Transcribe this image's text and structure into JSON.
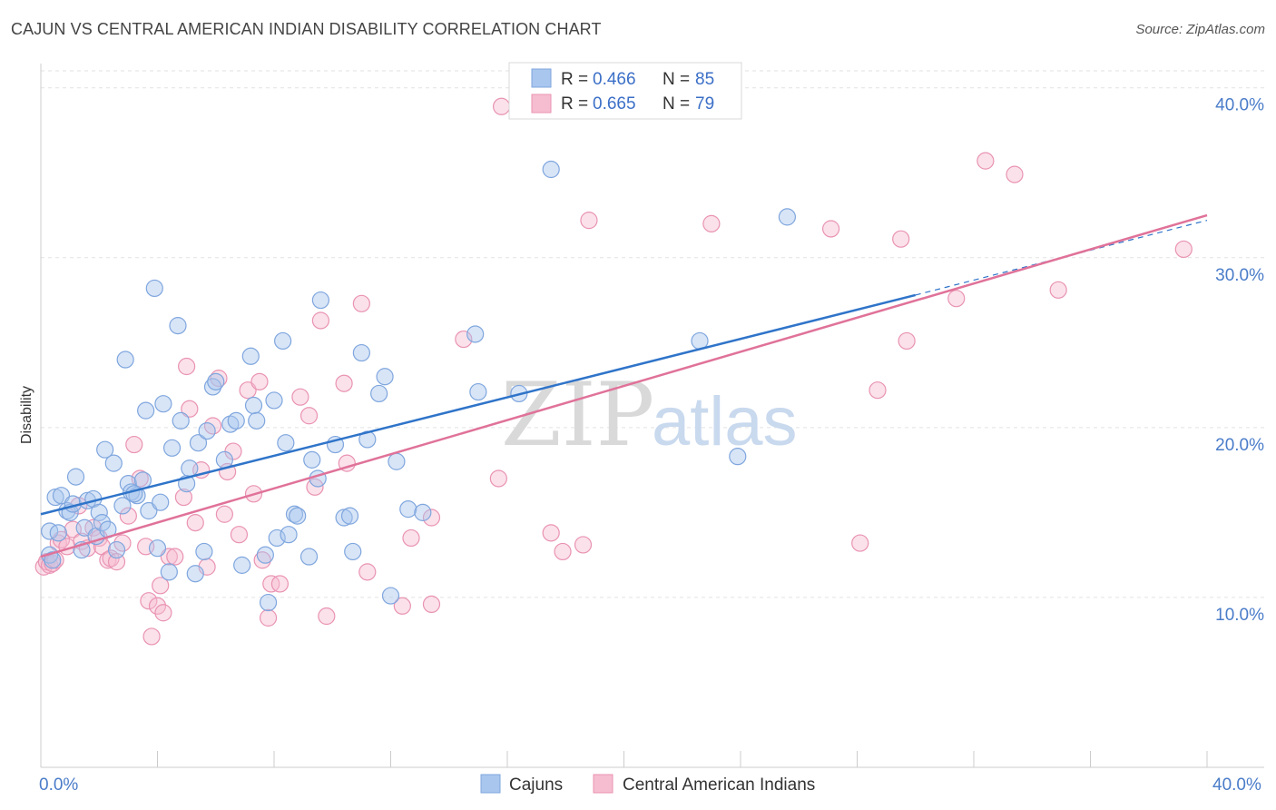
{
  "header": {
    "title": "CAJUN VS CENTRAL AMERICAN INDIAN DISABILITY CORRELATION CHART",
    "source": "Source: ZipAtlas.com"
  },
  "watermark": {
    "zip": "ZIP",
    "atlas": "atlas"
  },
  "colors": {
    "cajuns_fill": "#a9c6ee",
    "cajuns_stroke": "#7fa6de",
    "cajuns_line": "#2f74c9",
    "cai_fill": "#f6bdd0",
    "cai_stroke": "#e993b2",
    "cai_line": "#e07299",
    "grid": "#e2e2e2",
    "tick_text": "#4a7cc9"
  },
  "legend_top": {
    "rows": [
      {
        "r_label": "R = ",
        "r_value": "0.466",
        "n_label": "N = ",
        "n_value": "85"
      },
      {
        "r_label": "R = ",
        "r_value": "0.665",
        "n_label": "N = ",
        "n_value": "79"
      }
    ]
  },
  "legend_bottom": {
    "items": [
      "Cajuns",
      "Central American Indians"
    ]
  },
  "chart_data": {
    "type": "scatter",
    "title": "CAJUN VS CENTRAL AMERICAN INDIAN DISABILITY CORRELATION CHART",
    "xlabel": "",
    "ylabel": "Disability",
    "xlim": [
      0,
      40
    ],
    "ylim": [
      0,
      41
    ],
    "x_ticks": [
      "0.0%",
      "40.0%"
    ],
    "y_ticks": [
      {
        "value": 10,
        "label": "10.0%"
      },
      {
        "value": 20,
        "label": "20.0%"
      },
      {
        "value": 30,
        "label": "30.0%"
      },
      {
        "value": 40,
        "label": "40.0%"
      }
    ],
    "grid": true,
    "legend_position": "top-center",
    "series": [
      {
        "name": "Cajuns",
        "r": 0.466,
        "n": 85,
        "trend": {
          "x0": 0,
          "y0": 14.9,
          "x1": 30,
          "y1": 27.8,
          "dashed_to_x": 40,
          "dashed_to_y": 32.2
        },
        "points": [
          [
            0.3,
            12.5
          ],
          [
            0.4,
            12.2
          ],
          [
            0.3,
            13.9
          ],
          [
            0.5,
            15.9
          ],
          [
            0.6,
            13.8
          ],
          [
            0.7,
            16.0
          ],
          [
            0.9,
            15.1
          ],
          [
            1.0,
            15.0
          ],
          [
            1.1,
            15.5
          ],
          [
            1.2,
            17.1
          ],
          [
            1.4,
            12.8
          ],
          [
            1.5,
            14.1
          ],
          [
            1.6,
            15.7
          ],
          [
            1.8,
            15.8
          ],
          [
            1.9,
            13.6
          ],
          [
            2.0,
            15.0
          ],
          [
            2.1,
            14.4
          ],
          [
            2.2,
            18.7
          ],
          [
            2.3,
            14.0
          ],
          [
            2.5,
            17.9
          ],
          [
            2.6,
            12.8
          ],
          [
            2.8,
            15.4
          ],
          [
            2.9,
            24.0
          ],
          [
            3.0,
            16.7
          ],
          [
            3.1,
            16.2
          ],
          [
            3.3,
            16.0
          ],
          [
            3.5,
            16.9
          ],
          [
            3.6,
            21.0
          ],
          [
            3.7,
            15.1
          ],
          [
            3.9,
            28.2
          ],
          [
            4.0,
            12.9
          ],
          [
            4.1,
            15.6
          ],
          [
            4.2,
            21.4
          ],
          [
            4.4,
            11.5
          ],
          [
            4.5,
            18.8
          ],
          [
            4.7,
            26.0
          ],
          [
            4.8,
            20.4
          ],
          [
            5.0,
            16.7
          ],
          [
            5.1,
            17.6
          ],
          [
            5.3,
            11.4
          ],
          [
            5.4,
            19.1
          ],
          [
            5.6,
            12.7
          ],
          [
            5.7,
            19.8
          ],
          [
            5.9,
            22.4
          ],
          [
            6.0,
            22.7
          ],
          [
            6.3,
            18.1
          ],
          [
            6.5,
            20.2
          ],
          [
            6.7,
            20.4
          ],
          [
            6.9,
            11.9
          ],
          [
            7.2,
            24.2
          ],
          [
            7.3,
            21.3
          ],
          [
            7.4,
            20.4
          ],
          [
            7.7,
            12.5
          ],
          [
            7.8,
            9.7
          ],
          [
            8.0,
            21.6
          ],
          [
            8.1,
            13.5
          ],
          [
            8.3,
            25.1
          ],
          [
            8.4,
            19.1
          ],
          [
            8.5,
            13.7
          ],
          [
            8.7,
            14.9
          ],
          [
            8.8,
            14.8
          ],
          [
            9.2,
            12.4
          ],
          [
            9.3,
            18.1
          ],
          [
            9.5,
            17.0
          ],
          [
            9.6,
            27.5
          ],
          [
            10.1,
            19.0
          ],
          [
            10.4,
            14.7
          ],
          [
            10.6,
            14.8
          ],
          [
            10.7,
            12.7
          ],
          [
            11.0,
            24.4
          ],
          [
            11.2,
            19.3
          ],
          [
            11.6,
            22.0
          ],
          [
            11.8,
            23.0
          ],
          [
            12.0,
            10.1
          ],
          [
            12.2,
            18.0
          ],
          [
            12.6,
            15.2
          ],
          [
            13.1,
            15.0
          ],
          [
            14.9,
            25.5
          ],
          [
            15.0,
            22.1
          ],
          [
            16.4,
            22.0
          ],
          [
            17.5,
            35.2
          ],
          [
            22.6,
            25.1
          ],
          [
            23.9,
            18.3
          ],
          [
            25.6,
            32.4
          ],
          [
            3.2,
            16.1
          ]
        ]
      },
      {
        "name": "Central American Indians",
        "r": 0.665,
        "n": 79,
        "trend": {
          "x0": 0,
          "y0": 12.4,
          "x1": 40,
          "y1": 32.5
        },
        "points": [
          [
            0.1,
            11.8
          ],
          [
            0.2,
            12.1
          ],
          [
            0.3,
            11.9
          ],
          [
            0.4,
            12.0
          ],
          [
            0.5,
            12.2
          ],
          [
            0.6,
            13.2
          ],
          [
            0.7,
            13.4
          ],
          [
            0.9,
            13.0
          ],
          [
            1.1,
            14.0
          ],
          [
            1.3,
            15.4
          ],
          [
            1.4,
            13.3
          ],
          [
            1.6,
            12.9
          ],
          [
            1.8,
            14.1
          ],
          [
            2.0,
            13.5
          ],
          [
            2.1,
            13.0
          ],
          [
            2.3,
            12.2
          ],
          [
            2.4,
            12.3
          ],
          [
            2.6,
            12.1
          ],
          [
            2.8,
            13.2
          ],
          [
            3.0,
            14.8
          ],
          [
            3.2,
            19.0
          ],
          [
            3.4,
            17.0
          ],
          [
            3.6,
            13.0
          ],
          [
            3.7,
            9.8
          ],
          [
            3.8,
            7.7
          ],
          [
            4.0,
            9.5
          ],
          [
            4.1,
            10.7
          ],
          [
            4.2,
            9.1
          ],
          [
            4.4,
            12.4
          ],
          [
            4.6,
            12.4
          ],
          [
            4.9,
            15.9
          ],
          [
            5.0,
            23.6
          ],
          [
            5.1,
            21.1
          ],
          [
            5.3,
            14.4
          ],
          [
            5.5,
            17.5
          ],
          [
            5.7,
            11.8
          ],
          [
            5.9,
            20.1
          ],
          [
            6.1,
            22.9
          ],
          [
            6.3,
            14.9
          ],
          [
            6.4,
            17.4
          ],
          [
            6.6,
            18.6
          ],
          [
            6.8,
            13.7
          ],
          [
            7.1,
            22.2
          ],
          [
            7.3,
            16.1
          ],
          [
            7.5,
            22.7
          ],
          [
            7.6,
            12.2
          ],
          [
            7.8,
            8.8
          ],
          [
            7.9,
            10.8
          ],
          [
            8.2,
            10.8
          ],
          [
            8.9,
            21.8
          ],
          [
            9.2,
            20.7
          ],
          [
            9.4,
            16.5
          ],
          [
            9.6,
            26.3
          ],
          [
            9.8,
            8.9
          ],
          [
            10.4,
            22.6
          ],
          [
            10.5,
            17.9
          ],
          [
            11.0,
            27.3
          ],
          [
            11.2,
            11.5
          ],
          [
            12.4,
            9.5
          ],
          [
            12.7,
            13.5
          ],
          [
            13.4,
            9.6
          ],
          [
            13.4,
            14.7
          ],
          [
            14.5,
            25.2
          ],
          [
            15.7,
            17.0
          ],
          [
            15.8,
            38.9
          ],
          [
            17.5,
            13.8
          ],
          [
            17.9,
            12.7
          ],
          [
            18.6,
            13.1
          ],
          [
            18.8,
            32.2
          ],
          [
            23.0,
            32.0
          ],
          [
            27.1,
            31.7
          ],
          [
            28.1,
            13.2
          ],
          [
            28.7,
            22.2
          ],
          [
            29.5,
            31.1
          ],
          [
            29.7,
            25.1
          ],
          [
            31.4,
            27.6
          ],
          [
            32.4,
            35.7
          ],
          [
            33.4,
            34.9
          ],
          [
            34.9,
            28.1
          ]
        ],
        "extra_points": [
          [
            39.2,
            30.5
          ]
        ]
      }
    ]
  }
}
